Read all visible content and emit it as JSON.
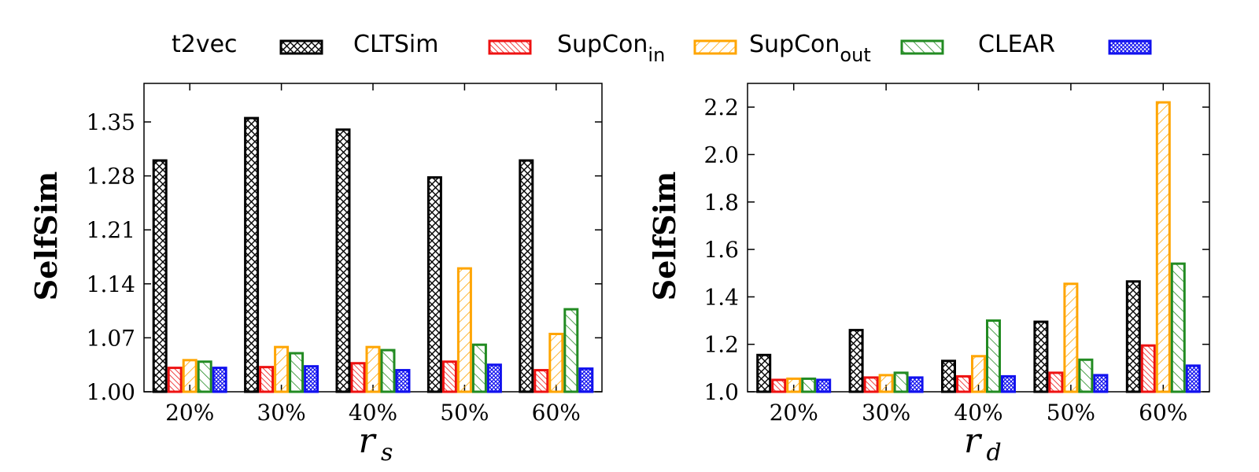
{
  "legend": {
    "entries": [
      {
        "name": "t2vec",
        "sub": ""
      },
      {
        "name": "CLTSim",
        "sub": ""
      },
      {
        "name": "SupCon",
        "sub": "in"
      },
      {
        "name": "SupCon",
        "sub": "out"
      },
      {
        "name": "CLEAR",
        "sub": ""
      }
    ]
  },
  "series_styles": [
    {
      "stroke": "#000000",
      "pattern": "crosshatch"
    },
    {
      "stroke": "#ee1111",
      "pattern": "dense-diag"
    },
    {
      "stroke": "#ffa500",
      "pattern": "diag-back"
    },
    {
      "stroke": "#228b22",
      "pattern": "diag-fwd"
    },
    {
      "stroke": "#1111ee",
      "pattern": "crosshatch-dense"
    }
  ],
  "chart_data": [
    {
      "type": "bar",
      "categories": [
        "20%",
        "30%",
        "40%",
        "50%",
        "60%"
      ],
      "xlabel": "r",
      "xlabel_sub": "s",
      "ylabel": "SelfSim",
      "ylim": [
        1.0,
        1.4
      ],
      "yticks": [
        1.0,
        1.07,
        1.14,
        1.21,
        1.28,
        1.35
      ],
      "ytick_labels": [
        "1.00",
        "1.07",
        "1.14",
        "1.21",
        "1.28",
        "1.35"
      ],
      "series": [
        {
          "values": [
            1.3,
            1.355,
            1.34,
            1.278,
            1.3
          ]
        },
        {
          "values": [
            1.031,
            1.032,
            1.037,
            1.039,
            1.028
          ]
        },
        {
          "values": [
            1.041,
            1.058,
            1.058,
            1.16,
            1.075
          ]
        },
        {
          "values": [
            1.039,
            1.05,
            1.054,
            1.061,
            1.107
          ]
        },
        {
          "values": [
            1.031,
            1.033,
            1.028,
            1.035,
            1.03
          ]
        }
      ]
    },
    {
      "type": "bar",
      "categories": [
        "20%",
        "30%",
        "40%",
        "50%",
        "60%"
      ],
      "xlabel": "r",
      "xlabel_sub": "d",
      "ylabel": "SelfSim",
      "ylim": [
        1.0,
        2.3
      ],
      "yticks": [
        1.0,
        1.2,
        1.4,
        1.6,
        1.8,
        2.0,
        2.2
      ],
      "ytick_labels": [
        "1.0",
        "1.2",
        "1.4",
        "1.6",
        "1.8",
        "2.0",
        "2.2"
      ],
      "series": [
        {
          "values": [
            1.155,
            1.26,
            1.13,
            1.295,
            1.465
          ]
        },
        {
          "values": [
            1.05,
            1.06,
            1.065,
            1.08,
            1.195
          ]
        },
        {
          "values": [
            1.055,
            1.07,
            1.15,
            1.455,
            2.22
          ]
        },
        {
          "values": [
            1.055,
            1.08,
            1.3,
            1.135,
            1.54
          ]
        },
        {
          "values": [
            1.05,
            1.06,
            1.065,
            1.07,
            1.11
          ]
        }
      ]
    }
  ]
}
